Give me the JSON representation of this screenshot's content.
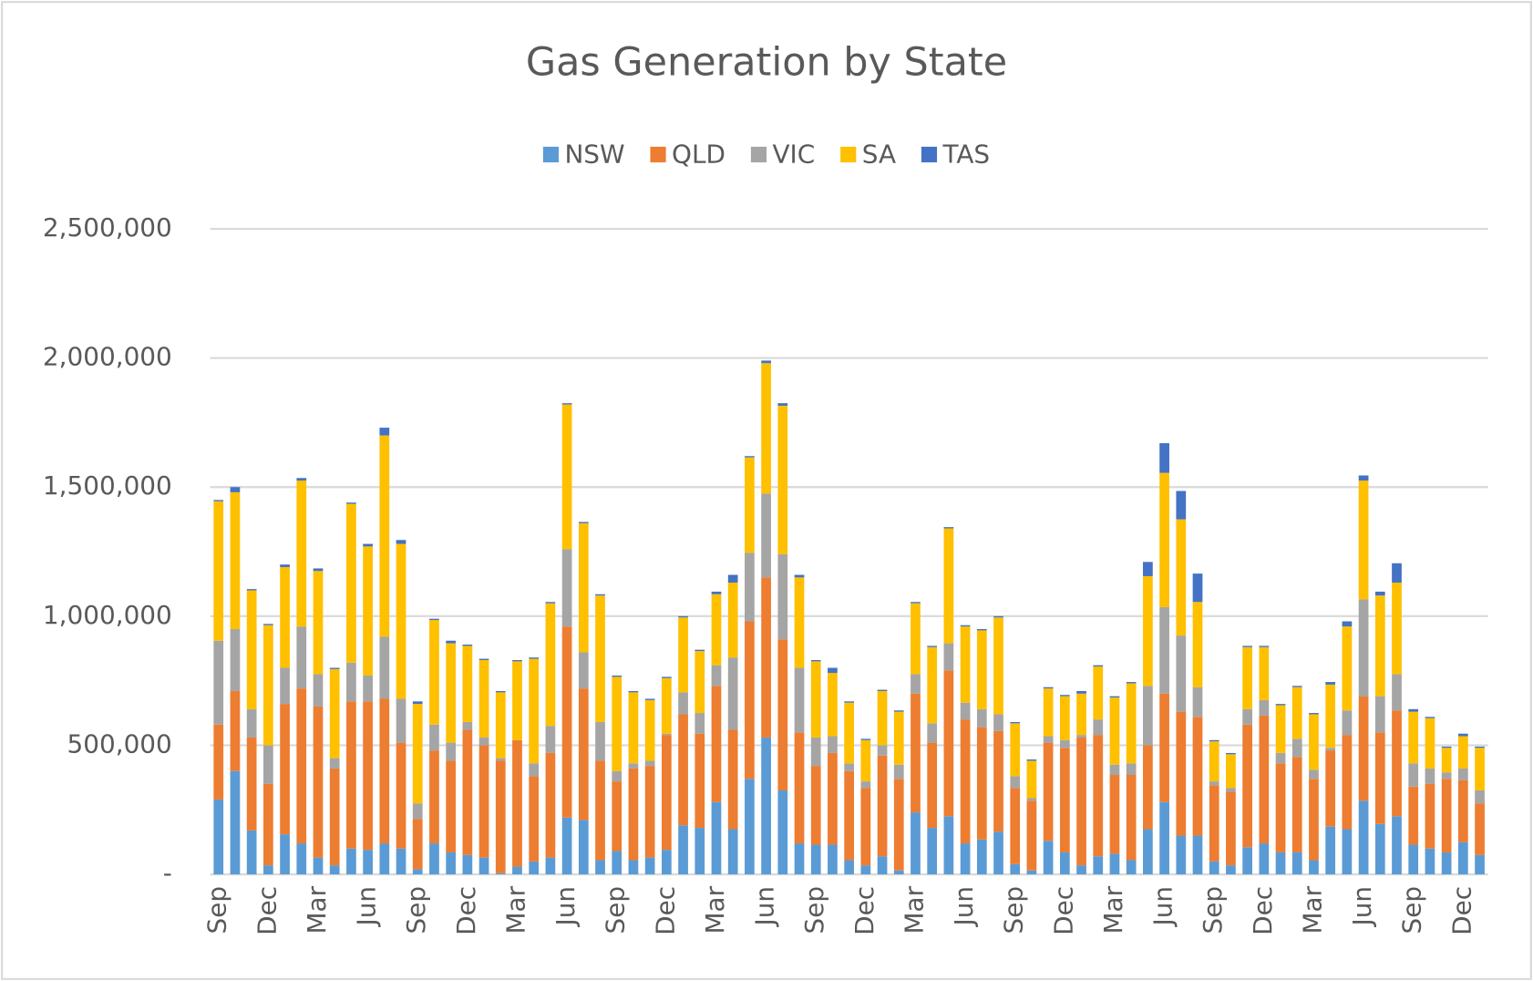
{
  "chart_data": {
    "type": "stacked-bar",
    "title": "Gas Generation by State",
    "categories": [
      "Sep",
      null,
      null,
      "Dec",
      null,
      null,
      "Mar",
      null,
      null,
      "Jun",
      null,
      null,
      "Sep",
      null,
      null,
      "Dec",
      null,
      null,
      "Mar",
      null,
      null,
      "Jun",
      null,
      null,
      "Sep",
      null,
      null,
      "Dec",
      null,
      null,
      "Mar",
      null,
      null,
      "Jun",
      null,
      null,
      "Sep",
      null,
      null,
      "Dec",
      null,
      null,
      "Mar",
      null,
      null,
      "Jun",
      null,
      null,
      "Sep",
      null,
      null,
      "Dec",
      null,
      null,
      "Mar",
      null,
      null,
      "Jun",
      null,
      null,
      "Sep",
      null,
      null,
      "Dec",
      null,
      null,
      "Mar",
      null,
      null,
      "Jun",
      null,
      null,
      "Sep",
      null,
      null,
      "Dec",
      null
    ],
    "series": [
      {
        "name": "NSW",
        "color": "#5b9bd5",
        "values": [
          290000,
          400000,
          170000,
          35000,
          155000,
          120000,
          65000,
          35000,
          100000,
          95000,
          120000,
          100000,
          20000,
          120000,
          85000,
          75000,
          65000,
          5000,
          30000,
          50000,
          65000,
          220000,
          210000,
          55000,
          90000,
          55000,
          65000,
          95000,
          190000,
          180000,
          280000,
          175000,
          370000,
          530000,
          325000,
          120000,
          115000,
          115000,
          55000,
          35000,
          70000,
          15000,
          240000,
          180000,
          225000,
          120000,
          135000,
          165000,
          40000,
          15000,
          130000,
          85000,
          35000,
          70000,
          80000,
          55000,
          175000,
          280000,
          150000,
          150000,
          50000,
          35000,
          105000,
          120000,
          85000,
          85000,
          55000,
          185000,
          175000,
          285000,
          195000,
          225000,
          115000,
          100000,
          85000,
          125000,
          75000
        ]
      },
      {
        "name": "QLD",
        "color": "#ed7d31",
        "values": [
          290000,
          310000,
          360000,
          315000,
          505000,
          600000,
          585000,
          375000,
          570000,
          575000,
          560000,
          410000,
          195000,
          360000,
          355000,
          485000,
          435000,
          435000,
          490000,
          330000,
          405000,
          740000,
          510000,
          385000,
          270000,
          355000,
          355000,
          445000,
          430000,
          365000,
          450000,
          385000,
          610000,
          620000,
          585000,
          430000,
          305000,
          355000,
          345000,
          300000,
          390000,
          355000,
          460000,
          330000,
          565000,
          480000,
          435000,
          390000,
          295000,
          270000,
          380000,
          405000,
          495000,
          470000,
          305000,
          330000,
          325000,
          420000,
          480000,
          460000,
          295000,
          285000,
          475000,
          495000,
          345000,
          370000,
          315000,
          295000,
          365000,
          405000,
          355000,
          410000,
          225000,
          250000,
          285000,
          240000,
          200000
        ]
      },
      {
        "name": "VIC",
        "color": "#a5a5a5",
        "values": [
          325000,
          240000,
          110000,
          150000,
          140000,
          240000,
          125000,
          40000,
          150000,
          100000,
          240000,
          170000,
          60000,
          100000,
          70000,
          30000,
          30000,
          10000,
          0,
          50000,
          105000,
          300000,
          140000,
          150000,
          40000,
          20000,
          20000,
          5000,
          85000,
          80000,
          80000,
          280000,
          265000,
          325000,
          330000,
          250000,
          110000,
          65000,
          30000,
          25000,
          40000,
          55000,
          75000,
          75000,
          105000,
          65000,
          70000,
          65000,
          45000,
          10000,
          25000,
          30000,
          10000,
          60000,
          40000,
          45000,
          230000,
          335000,
          295000,
          115000,
          15000,
          15000,
          60000,
          60000,
          40000,
          70000,
          35000,
          10000,
          95000,
          375000,
          140000,
          140000,
          90000,
          60000,
          25000,
          45000,
          50000
        ]
      },
      {
        "name": "SA",
        "color": "#ffc000",
        "values": [
          540000,
          530000,
          460000,
          465000,
          390000,
          565000,
          400000,
          345000,
          615000,
          500000,
          780000,
          600000,
          385000,
          405000,
          385000,
          295000,
          300000,
          255000,
          305000,
          405000,
          475000,
          560000,
          500000,
          490000,
          365000,
          275000,
          235000,
          215000,
          290000,
          240000,
          275000,
          290000,
          370000,
          505000,
          575000,
          350000,
          295000,
          245000,
          235000,
          160000,
          210000,
          205000,
          275000,
          295000,
          445000,
          295000,
          305000,
          375000,
          205000,
          145000,
          185000,
          170000,
          160000,
          205000,
          260000,
          310000,
          425000,
          520000,
          450000,
          330000,
          155000,
          130000,
          240000,
          205000,
          185000,
          200000,
          215000,
          245000,
          325000,
          460000,
          390000,
          355000,
          200000,
          195000,
          95000,
          125000,
          165000
        ]
      },
      {
        "name": "TAS",
        "color": "#4472c4",
        "values": [
          5000,
          20000,
          5000,
          5000,
          10000,
          10000,
          10000,
          5000,
          5000,
          10000,
          30000,
          15000,
          10000,
          5000,
          10000,
          5000,
          5000,
          5000,
          5000,
          5000,
          5000,
          5000,
          5000,
          5000,
          5000,
          5000,
          5000,
          5000,
          5000,
          5000,
          10000,
          30000,
          5000,
          10000,
          10000,
          10000,
          5000,
          20000,
          5000,
          5000,
          5000,
          5000,
          5000,
          5000,
          5000,
          5000,
          5000,
          5000,
          5000,
          5000,
          5000,
          5000,
          10000,
          5000,
          5000,
          5000,
          55000,
          115000,
          110000,
          110000,
          5000,
          5000,
          5000,
          5000,
          5000,
          5000,
          5000,
          10000,
          20000,
          20000,
          15000,
          75000,
          10000,
          5000,
          5000,
          10000,
          5000
        ]
      }
    ],
    "ylim": [
      0,
      2500000
    ],
    "yticks": [
      {
        "value": 0,
        "label": "-"
      },
      {
        "value": 500000,
        "label": "500,000"
      },
      {
        "value": 1000000,
        "label": "1,000,000"
      },
      {
        "value": 1500000,
        "label": "1,500,000"
      },
      {
        "value": 2000000,
        "label": "2,000,000"
      },
      {
        "value": 2500000,
        "label": "2,500,000"
      }
    ],
    "grid": true,
    "legend": "top"
  }
}
